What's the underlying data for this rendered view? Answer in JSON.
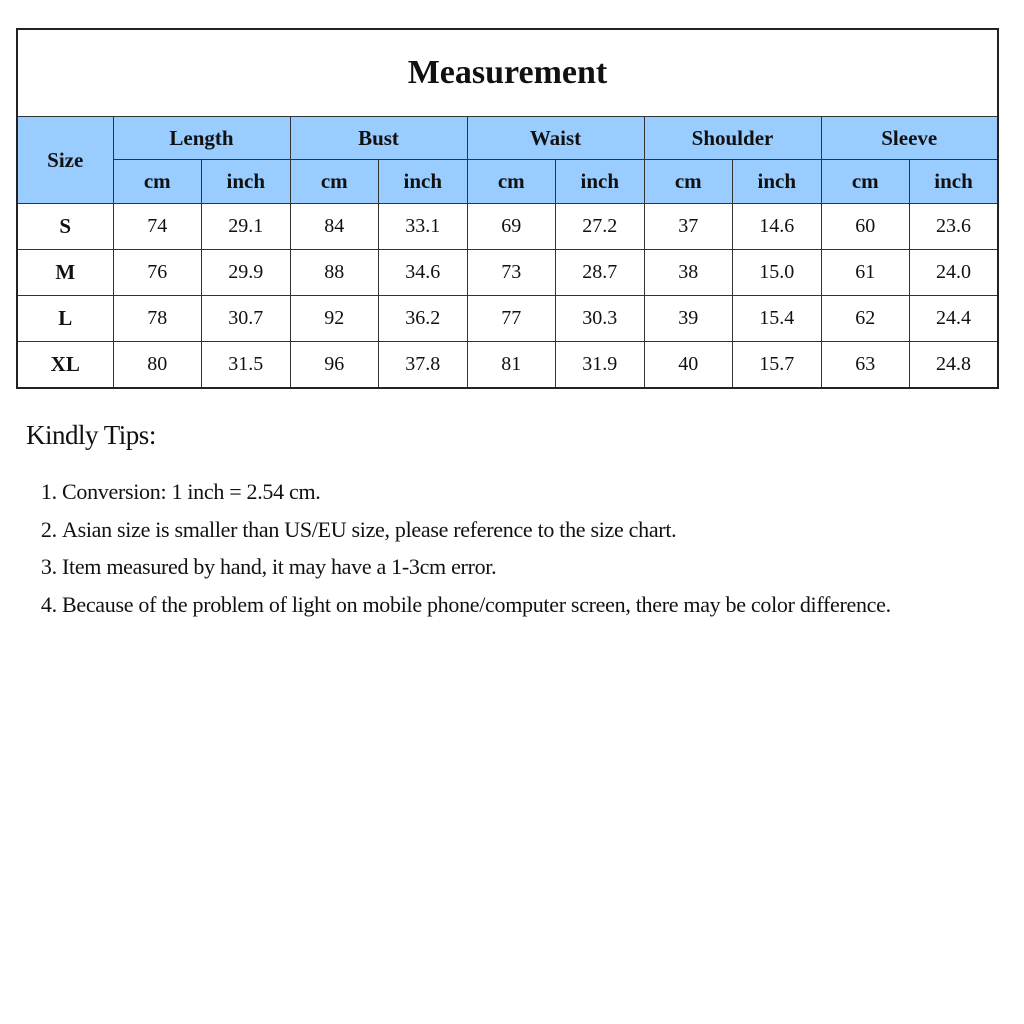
{
  "table": {
    "title": "Measurement",
    "size_header": "Size",
    "groups": [
      "Length",
      "Bust",
      "Waist",
      "Shoulder",
      "Sleeve"
    ],
    "units": [
      "cm",
      "inch"
    ],
    "rows": [
      {
        "size": "S",
        "values": [
          "74",
          "29.1",
          "84",
          "33.1",
          "69",
          "27.2",
          "37",
          "14.6",
          "60",
          "23.6"
        ]
      },
      {
        "size": "M",
        "values": [
          "76",
          "29.9",
          "88",
          "34.6",
          "73",
          "28.7",
          "38",
          "15.0",
          "61",
          "24.0"
        ]
      },
      {
        "size": "L",
        "values": [
          "78",
          "30.7",
          "92",
          "36.2",
          "77",
          "30.3",
          "39",
          "15.4",
          "62",
          "24.4"
        ]
      },
      {
        "size": "XL",
        "values": [
          "80",
          "31.5",
          "96",
          "37.8",
          "81",
          "31.9",
          "40",
          "15.7",
          "63",
          "24.8"
        ]
      }
    ],
    "header_color": "#99ccff"
  },
  "tips": {
    "title": "Kindly Tips:",
    "items": [
      "Conversion: 1 inch = 2.54 cm.",
      "Asian size is smaller than US/EU size, please reference to the size chart.",
      "Item measured by hand, it may have a 1-3cm error.",
      "Because of the problem of light on mobile phone/computer screen, there may be color difference."
    ]
  }
}
